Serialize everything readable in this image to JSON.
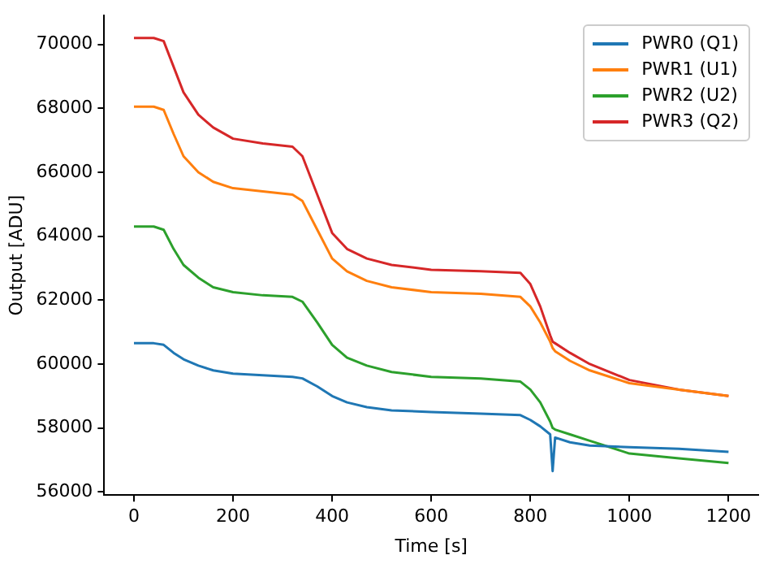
{
  "chart_data": {
    "type": "line",
    "xlabel": "Time [s]",
    "ylabel": "Output [ADU]",
    "x": [
      0,
      40,
      60,
      80,
      100,
      130,
      160,
      200,
      260,
      320,
      340,
      370,
      400,
      430,
      470,
      520,
      600,
      700,
      780,
      800,
      820,
      840,
      845,
      850,
      880,
      920,
      1000,
      1100,
      1200
    ],
    "series": [
      {
        "name": "PWR0 (Q1)",
        "color": "#1f77b4",
        "values": [
          60650,
          60650,
          60600,
          60350,
          60150,
          59950,
          59800,
          59700,
          59650,
          59600,
          59550,
          59300,
          59000,
          58800,
          58650,
          58550,
          58500,
          58450,
          58400,
          58250,
          58050,
          57800,
          56650,
          57700,
          57550,
          57450,
          57400,
          57350,
          57250
        ]
      },
      {
        "name": "PWR1 (U1)",
        "color": "#ff7f0e",
        "values": [
          68050,
          68050,
          67950,
          67200,
          66500,
          66000,
          65700,
          65500,
          65400,
          65300,
          65100,
          64200,
          63300,
          62900,
          62600,
          62400,
          62250,
          62200,
          62100,
          61800,
          61300,
          60700,
          60500,
          60400,
          60100,
          59800,
          59400,
          59200,
          59000
        ]
      },
      {
        "name": "PWR2 (U2)",
        "color": "#2ca02c",
        "values": [
          64300,
          64300,
          64200,
          63600,
          63100,
          62700,
          62400,
          62250,
          62150,
          62100,
          61950,
          61300,
          60600,
          60200,
          59950,
          59750,
          59600,
          59550,
          59450,
          59200,
          58800,
          58200,
          58000,
          57950,
          57800,
          57600,
          57200,
          57050,
          56900
        ]
      },
      {
        "name": "PWR3 (Q2)",
        "color": "#d62728",
        "values": [
          70200,
          70200,
          70100,
          69300,
          68500,
          67800,
          67400,
          67050,
          66900,
          66800,
          66500,
          65300,
          64100,
          63600,
          63300,
          63100,
          62950,
          62900,
          62850,
          62500,
          61800,
          60900,
          60700,
          60650,
          60350,
          60000,
          59500,
          59200,
          59000
        ]
      }
    ],
    "xlim": [
      -60,
      1260
    ],
    "xticks": [
      0,
      200,
      400,
      600,
      800,
      1000,
      1200
    ],
    "ylim": [
      55900,
      70900
    ],
    "yticks": [
      56000,
      58000,
      60000,
      62000,
      64000,
      66000,
      68000,
      70000
    ],
    "grid": false,
    "legend": "top right",
    "marker": "none",
    "line_style": "solid"
  }
}
